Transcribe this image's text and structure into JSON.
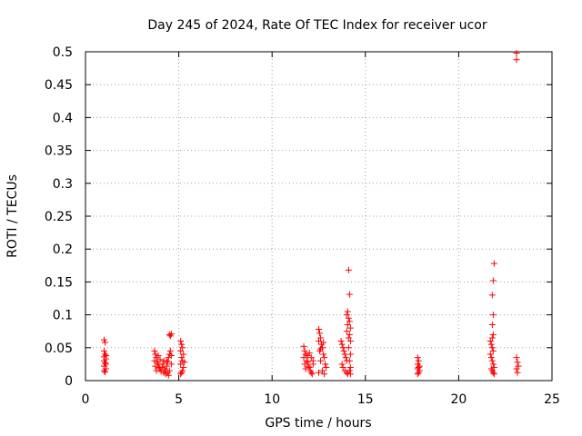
{
  "chart_data": {
    "type": "scatter",
    "title": "Day 245 of 2024, Rate Of TEC Index for receiver ucor",
    "xlabel": "GPS time / hours",
    "ylabel": "ROTI / TECUs",
    "xlim": [
      0,
      25
    ],
    "ylim": [
      0,
      0.5
    ],
    "x_ticks": [
      0,
      5,
      10,
      15,
      20,
      25
    ],
    "y_ticks": [
      0,
      0.05,
      0.1,
      0.15,
      0.2,
      0.25,
      0.3,
      0.35,
      0.4,
      0.45,
      0.5
    ],
    "x_tick_labels": [
      "0",
      "5",
      "10",
      "15",
      "20",
      "25"
    ],
    "y_tick_labels": [
      "0",
      "0.05",
      "0.1",
      "0.15",
      "0.2",
      "0.25",
      "0.3",
      "0.35",
      "0.4",
      "0.45",
      "0.5"
    ],
    "grid": true,
    "marker": "+",
    "color": "#ff0000",
    "points": [
      [
        1.0,
        0.062
      ],
      [
        1.05,
        0.058
      ],
      [
        1.0,
        0.045
      ],
      [
        1.05,
        0.04
      ],
      [
        1.0,
        0.036
      ],
      [
        1.1,
        0.033
      ],
      [
        1.0,
        0.03
      ],
      [
        1.05,
        0.027
      ],
      [
        1.0,
        0.022
      ],
      [
        1.1,
        0.018
      ],
      [
        1.0,
        0.015
      ],
      [
        1.05,
        0.013
      ],
      [
        1.1,
        0.038
      ],
      [
        1.1,
        0.025
      ],
      [
        3.7,
        0.045
      ],
      [
        3.75,
        0.04
      ],
      [
        3.8,
        0.035
      ],
      [
        3.7,
        0.03
      ],
      [
        3.85,
        0.028
      ],
      [
        3.9,
        0.025
      ],
      [
        3.75,
        0.022
      ],
      [
        3.95,
        0.02
      ],
      [
        4.0,
        0.018
      ],
      [
        3.8,
        0.015
      ],
      [
        4.05,
        0.014
      ],
      [
        4.1,
        0.02
      ],
      [
        4.15,
        0.025
      ],
      [
        4.2,
        0.03
      ],
      [
        4.25,
        0.018
      ],
      [
        4.3,
        0.015
      ],
      [
        4.35,
        0.022
      ],
      [
        4.4,
        0.028
      ],
      [
        4.45,
        0.035
      ],
      [
        4.5,
        0.04
      ],
      [
        4.55,
        0.045
      ],
      [
        4.6,
        0.038
      ],
      [
        4.3,
        0.01
      ],
      [
        4.4,
        0.012
      ],
      [
        4.5,
        0.015
      ],
      [
        4.5,
        0.07
      ],
      [
        4.55,
        0.068
      ],
      [
        4.6,
        0.071
      ],
      [
        4.6,
        0.025
      ],
      [
        4.45,
        0.008
      ],
      [
        4.35,
        0.03
      ],
      [
        4.2,
        0.012
      ],
      [
        4.0,
        0.032
      ],
      [
        3.9,
        0.038
      ],
      [
        5.1,
        0.06
      ],
      [
        5.15,
        0.055
      ],
      [
        5.2,
        0.05
      ],
      [
        5.1,
        0.045
      ],
      [
        5.25,
        0.04
      ],
      [
        5.15,
        0.035
      ],
      [
        5.2,
        0.03
      ],
      [
        5.1,
        0.025
      ],
      [
        5.25,
        0.02
      ],
      [
        5.2,
        0.015
      ],
      [
        5.15,
        0.012
      ],
      [
        5.1,
        0.01
      ],
      [
        5.3,
        0.028
      ],
      [
        11.7,
        0.052
      ],
      [
        11.75,
        0.045
      ],
      [
        11.8,
        0.04
      ],
      [
        11.7,
        0.035
      ],
      [
        11.85,
        0.03
      ],
      [
        11.9,
        0.028
      ],
      [
        11.75,
        0.025
      ],
      [
        11.95,
        0.022
      ],
      [
        12.0,
        0.02
      ],
      [
        11.8,
        0.018
      ],
      [
        12.05,
        0.015
      ],
      [
        12.1,
        0.012
      ],
      [
        12.15,
        0.01
      ],
      [
        12.2,
        0.025
      ],
      [
        12.1,
        0.035
      ],
      [
        12.0,
        0.042
      ],
      [
        11.9,
        0.038
      ],
      [
        12.2,
        0.03
      ],
      [
        12.5,
        0.078
      ],
      [
        12.55,
        0.072
      ],
      [
        12.6,
        0.065
      ],
      [
        12.5,
        0.06
      ],
      [
        12.65,
        0.055
      ],
      [
        12.7,
        0.05
      ],
      [
        12.55,
        0.045
      ],
      [
        12.75,
        0.04
      ],
      [
        12.8,
        0.035
      ],
      [
        12.6,
        0.03
      ],
      [
        12.85,
        0.025
      ],
      [
        12.9,
        0.02
      ],
      [
        12.7,
        0.015
      ],
      [
        12.5,
        0.012
      ],
      [
        12.8,
        0.01
      ],
      [
        12.6,
        0.048
      ],
      [
        12.75,
        0.058
      ],
      [
        13.7,
        0.06
      ],
      [
        13.75,
        0.055
      ],
      [
        13.8,
        0.05
      ],
      [
        13.85,
        0.045
      ],
      [
        13.9,
        0.04
      ],
      [
        13.95,
        0.035
      ],
      [
        14.0,
        0.03
      ],
      [
        13.75,
        0.025
      ],
      [
        13.8,
        0.02
      ],
      [
        13.9,
        0.015
      ],
      [
        14.0,
        0.012
      ],
      [
        14.05,
        0.01
      ],
      [
        14.1,
        0.065
      ],
      [
        14.0,
        0.075
      ],
      [
        14.05,
        0.085
      ],
      [
        14.1,
        0.095
      ],
      [
        14.0,
        0.1
      ],
      [
        14.05,
        0.105
      ],
      [
        14.15,
        0.09
      ],
      [
        14.2,
        0.08
      ],
      [
        14.15,
        0.07
      ],
      [
        14.2,
        0.06
      ],
      [
        14.1,
        0.05
      ],
      [
        14.2,
        0.04
      ],
      [
        14.15,
        0.03
      ],
      [
        14.2,
        0.02
      ],
      [
        14.15,
        0.015
      ],
      [
        14.2,
        0.01
      ],
      [
        14.15,
        0.131
      ],
      [
        14.1,
        0.168
      ],
      [
        17.8,
        0.035
      ],
      [
        17.85,
        0.03
      ],
      [
        17.8,
        0.025
      ],
      [
        17.9,
        0.022
      ],
      [
        17.85,
        0.02
      ],
      [
        17.8,
        0.018
      ],
      [
        17.9,
        0.015
      ],
      [
        17.85,
        0.012
      ],
      [
        17.8,
        0.01
      ],
      [
        21.7,
        0.06
      ],
      [
        21.75,
        0.055
      ],
      [
        21.8,
        0.05
      ],
      [
        21.85,
        0.045
      ],
      [
        21.7,
        0.04
      ],
      [
        21.75,
        0.035
      ],
      [
        21.8,
        0.03
      ],
      [
        21.85,
        0.025
      ],
      [
        21.9,
        0.02
      ],
      [
        21.75,
        0.018
      ],
      [
        21.8,
        0.015
      ],
      [
        21.85,
        0.012
      ],
      [
        21.9,
        0.01
      ],
      [
        21.8,
        0.065
      ],
      [
        21.85,
        0.07
      ],
      [
        21.8,
        0.085
      ],
      [
        21.85,
        0.1
      ],
      [
        21.8,
        0.13
      ],
      [
        21.85,
        0.152
      ],
      [
        21.9,
        0.178
      ],
      [
        23.1,
        0.035
      ],
      [
        23.15,
        0.028
      ],
      [
        23.2,
        0.022
      ],
      [
        23.1,
        0.018
      ],
      [
        23.15,
        0.012
      ],
      [
        23.1,
        0.498
      ],
      [
        23.1,
        0.488
      ]
    ]
  }
}
